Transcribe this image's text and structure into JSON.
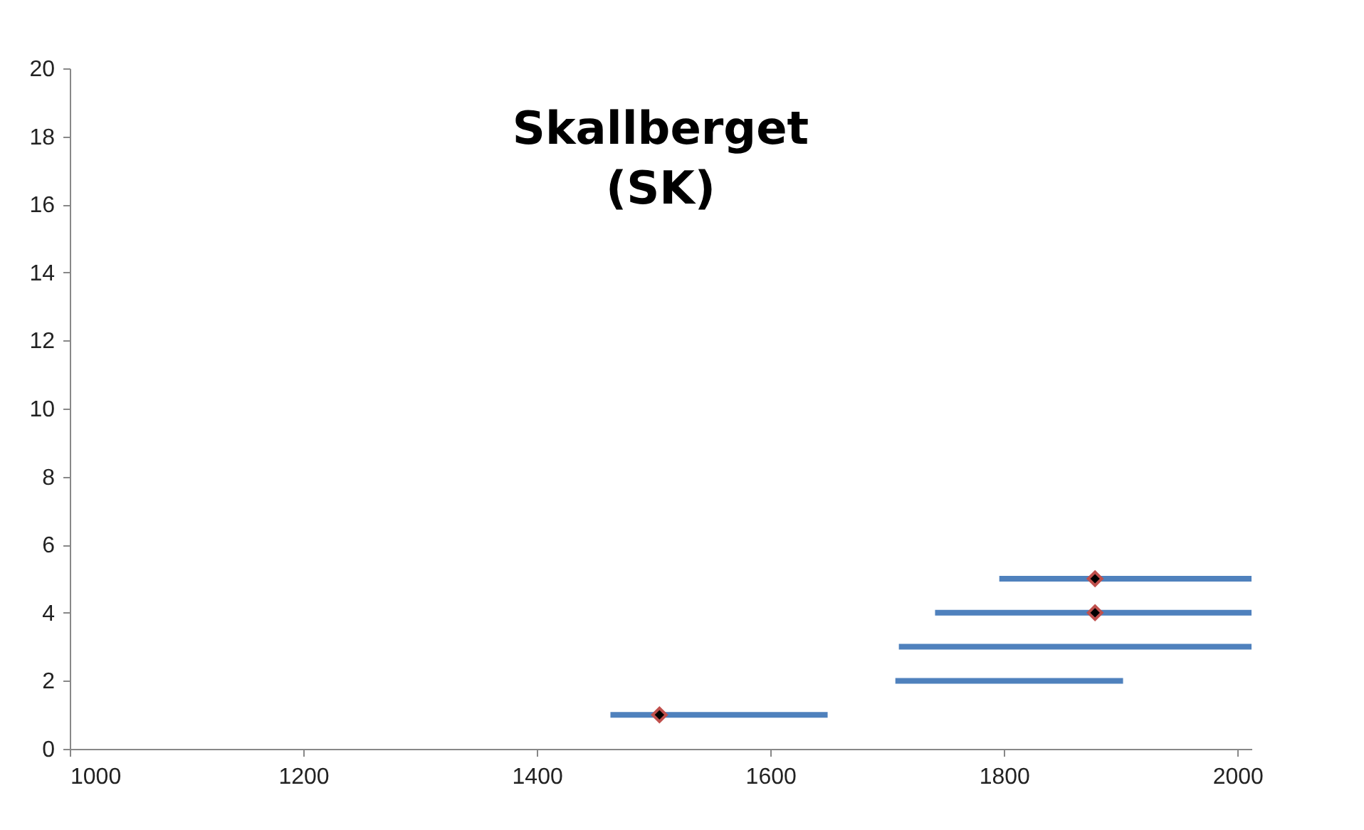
{
  "chart_data": {
    "type": "line",
    "title": "Skallberget\n(SK)",
    "xlim": [
      1000,
      2012
    ],
    "xticks": [
      1000,
      1200,
      1400,
      1600,
      1800,
      2000
    ],
    "ylim": [
      0,
      20
    ],
    "yticks": [
      0,
      2,
      4,
      6,
      8,
      10,
      12,
      14,
      16,
      18,
      20
    ],
    "grid": false,
    "series": [
      {
        "type": "line",
        "color": "#4f81bd",
        "x": [
          1463,
          1649
        ],
        "values": [
          1,
          1
        ]
      },
      {
        "type": "line",
        "color": "#4f81bd",
        "x": [
          1707,
          1902
        ],
        "values": [
          2,
          2
        ]
      },
      {
        "type": "line",
        "color": "#4f81bd",
        "x": [
          1710,
          2012
        ],
        "values": [
          3,
          3
        ]
      },
      {
        "type": "line",
        "color": "#4f81bd",
        "x": [
          1741,
          2012
        ],
        "values": [
          4,
          4
        ]
      },
      {
        "type": "line",
        "color": "#4f81bd",
        "x": [
          1796,
          2012
        ],
        "values": [
          5,
          5
        ]
      },
      {
        "type": "scatter",
        "color": "#000000",
        "marker": "diamond",
        "x": [
          1505,
          1878,
          1878
        ],
        "values": [
          1,
          4,
          5
        ]
      }
    ]
  }
}
